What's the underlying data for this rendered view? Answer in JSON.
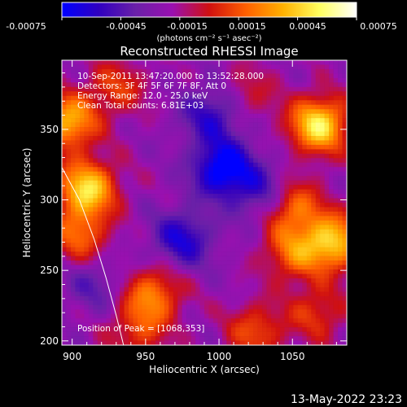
{
  "colorbar": {
    "tick_labels": [
      "-0.00075",
      "-0.00045",
      "-0.00015",
      "0.00015",
      "0.00045",
      "0.00075"
    ],
    "unit_label": "(photons cm⁻² s⁻¹ asec⁻²)",
    "range": [
      -0.00075,
      0.00075
    ],
    "colors": [
      "#0000ff",
      "#3000c0",
      "#6a20a8",
      "#9a10b0",
      "#d01010",
      "#ff6000",
      "#ffb000",
      "#ffff60",
      "#ffffff"
    ]
  },
  "chart_data": {
    "type": "heatmap",
    "title": "Reconstructed RHESSI Image",
    "xlabel": "Heliocentric X (arcsec)",
    "ylabel": "Heliocentric Y (arcsec)",
    "xlim": [
      893,
      1087
    ],
    "ylim": [
      197,
      399
    ],
    "xticks": [
      900,
      950,
      1000,
      1050
    ],
    "yticks": [
      200,
      250,
      300,
      350
    ],
    "xtick_labels": [
      "900",
      "950",
      "1000",
      "1050"
    ],
    "ytick_labels": [
      "200",
      "250",
      "300",
      "350"
    ],
    "info_lines": [
      "10-Sep-2011 13:47:20.000 to 13:52:28.000",
      "Detectors: 3F 4F 5F 6F 7F 8F, Att 0",
      "Energy Range: 12.0 - 25.0 keV",
      "Clean     Total counts: 6.81E+03"
    ],
    "peak_label": "Position of Peak = [1068,353]",
    "peak": [
      1068,
      353
    ],
    "limb_curve": [
      [
        893,
        323
      ],
      [
        905,
        300
      ],
      [
        915,
        272
      ],
      [
        923,
        245
      ],
      [
        930,
        218
      ],
      [
        935,
        197
      ]
    ],
    "hotspots": [
      {
        "x": 1068,
        "y": 353,
        "value": 0.00075
      },
      {
        "x": 910,
        "y": 308,
        "value": 0.0007
      },
      {
        "x": 897,
        "y": 355,
        "value": 0.0006
      },
      {
        "x": 905,
        "y": 275,
        "value": 0.0004
      },
      {
        "x": 1078,
        "y": 270,
        "value": 0.00065
      },
      {
        "x": 1050,
        "y": 295,
        "value": 0.00045
      },
      {
        "x": 1050,
        "y": 262,
        "value": 0.0004
      },
      {
        "x": 955,
        "y": 233,
        "value": 0.00045
      },
      {
        "x": 945,
        "y": 207,
        "value": 0.0003
      },
      {
        "x": 1025,
        "y": 207,
        "value": 0.00035
      },
      {
        "x": 1067,
        "y": 220,
        "value": 0.0003
      },
      {
        "x": 930,
        "y": 380,
        "value": 0.0003
      },
      {
        "x": 1020,
        "y": 375,
        "value": 0.0002
      }
    ],
    "coldspots": [
      {
        "x": 1003,
        "y": 322,
        "value": -0.0006
      },
      {
        "x": 975,
        "y": 272,
        "value": -0.0004
      },
      {
        "x": 1030,
        "y": 305,
        "value": -0.0003
      },
      {
        "x": 995,
        "y": 360,
        "value": -0.00035
      },
      {
        "x": 915,
        "y": 240,
        "value": -0.0002
      }
    ]
  },
  "footer": {
    "timestamp": "13-May-2022 23:23"
  }
}
